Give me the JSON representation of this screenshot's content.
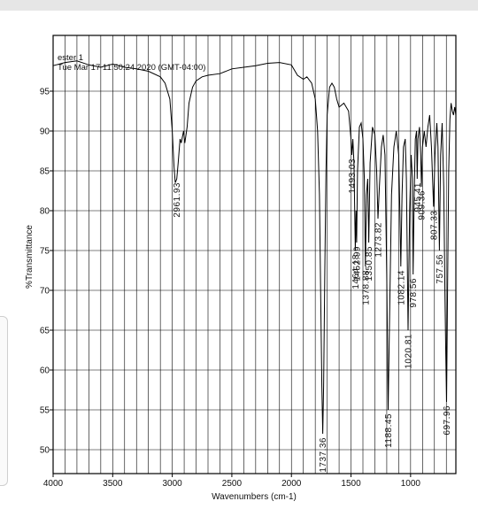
{
  "header": {
    "sample": "ester 1",
    "timestamp": "Tue Mar 17 11:50:24 2020 (GMT-04:00)"
  },
  "chart_data": {
    "type": "line",
    "title": "",
    "xlabel": "Wavenumbers (cm-1)",
    "ylabel": "%Transmittance",
    "xlim": [
      4000,
      620
    ],
    "ylim": [
      47,
      102
    ],
    "x_ticks": [
      "4000",
      "3500",
      "3000",
      "2500",
      "2000",
      "1500",
      "1000"
    ],
    "y_ticks": [
      "95",
      "90",
      "85",
      "80",
      "75",
      "70",
      "65",
      "60",
      "55",
      "50"
    ],
    "grid": true,
    "series": [
      {
        "points": [
          [
            4000,
            98.2
          ],
          [
            3900,
            98.6
          ],
          [
            3800,
            98.8
          ],
          [
            3700,
            98.3
          ],
          [
            3600,
            98.0
          ],
          [
            3500,
            98.4
          ],
          [
            3400,
            98.0
          ],
          [
            3300,
            97.8
          ],
          [
            3200,
            97.5
          ],
          [
            3100,
            96.8
          ],
          [
            3060,
            96.0
          ],
          [
            3020,
            94.0
          ],
          [
            3000,
            90.0
          ],
          [
            2985,
            85.5
          ],
          [
            2975,
            83.5
          ],
          [
            2962,
            84.0
          ],
          [
            2950,
            86.0
          ],
          [
            2935,
            89.0
          ],
          [
            2925,
            88.5
          ],
          [
            2905,
            90.0
          ],
          [
            2895,
            88.5
          ],
          [
            2875,
            90.5
          ],
          [
            2860,
            93.5
          ],
          [
            2830,
            95.5
          ],
          [
            2800,
            96.3
          ],
          [
            2750,
            96.8
          ],
          [
            2700,
            97.0
          ],
          [
            2600,
            97.2
          ],
          [
            2500,
            97.8
          ],
          [
            2400,
            98.0
          ],
          [
            2300,
            98.2
          ],
          [
            2200,
            98.5
          ],
          [
            2100,
            98.6
          ],
          [
            2000,
            98.3
          ],
          [
            1950,
            97.0
          ],
          [
            1900,
            96.5
          ],
          [
            1870,
            96.8
          ],
          [
            1830,
            96.0
          ],
          [
            1800,
            94.0
          ],
          [
            1780,
            90.0
          ],
          [
            1765,
            82.0
          ],
          [
            1755,
            70.0
          ],
          [
            1745,
            58.0
          ],
          [
            1737,
            52.0
          ],
          [
            1730,
            58.0
          ],
          [
            1720,
            72.0
          ],
          [
            1710,
            85.0
          ],
          [
            1700,
            92.0
          ],
          [
            1680,
            95.5
          ],
          [
            1660,
            96.0
          ],
          [
            1640,
            95.5
          ],
          [
            1620,
            94.0
          ],
          [
            1600,
            93.0
          ],
          [
            1560,
            93.5
          ],
          [
            1520,
            92.5
          ],
          [
            1500,
            89.0
          ],
          [
            1493,
            87.0
          ],
          [
            1485,
            89.0
          ],
          [
            1475,
            86.0
          ],
          [
            1464,
            75.0
          ],
          [
            1458,
            80.0
          ],
          [
            1453,
            76.0
          ],
          [
            1445,
            85.0
          ],
          [
            1430,
            90.5
          ],
          [
            1415,
            91.0
          ],
          [
            1400,
            89.0
          ],
          [
            1388,
            84.0
          ],
          [
            1379,
            73.0
          ],
          [
            1370,
            82.0
          ],
          [
            1360,
            84.0
          ],
          [
            1351,
            76.0
          ],
          [
            1340,
            86.0
          ],
          [
            1320,
            90.5
          ],
          [
            1300,
            89.5
          ],
          [
            1285,
            85.0
          ],
          [
            1274,
            79.0
          ],
          [
            1262,
            83.0
          ],
          [
            1245,
            88.0
          ],
          [
            1230,
            89.5
          ],
          [
            1215,
            87.0
          ],
          [
            1200,
            72.0
          ],
          [
            1188,
            55.0
          ],
          [
            1175,
            68.0
          ],
          [
            1160,
            82.0
          ],
          [
            1140,
            88.0
          ],
          [
            1120,
            90.0
          ],
          [
            1100,
            87.0
          ],
          [
            1090,
            80.0
          ],
          [
            1082,
            73.0
          ],
          [
            1072,
            82.0
          ],
          [
            1060,
            88.0
          ],
          [
            1045,
            89.0
          ],
          [
            1035,
            84.0
          ],
          [
            1021,
            65.0
          ],
          [
            1008,
            80.0
          ],
          [
            995,
            87.0
          ],
          [
            985,
            84.0
          ],
          [
            979,
            72.0
          ],
          [
            970,
            82.0
          ],
          [
            960,
            89.0
          ],
          [
            950,
            90.0
          ],
          [
            945,
            84.0
          ],
          [
            938,
            89.0
          ],
          [
            925,
            90.5
          ],
          [
            915,
            87.0
          ],
          [
            909,
            83.0
          ],
          [
            900,
            88.0
          ],
          [
            885,
            90.0
          ],
          [
            870,
            88.0
          ],
          [
            855,
            90.5
          ],
          [
            840,
            92.0
          ],
          [
            825,
            88.0
          ],
          [
            807,
            80.5
          ],
          [
            795,
            87.0
          ],
          [
            780,
            91.0
          ],
          [
            770,
            88.0
          ],
          [
            758,
            75.0
          ],
          [
            748,
            87.0
          ],
          [
            735,
            91.0
          ],
          [
            722,
            83.0
          ],
          [
            712,
            70.0
          ],
          [
            705,
            62.0
          ],
          [
            698,
            56.0
          ],
          [
            690,
            70.0
          ],
          [
            680,
            85.0
          ],
          [
            670,
            91.5
          ],
          [
            660,
            93.5
          ],
          [
            650,
            92.5
          ],
          [
            640,
            92.0
          ],
          [
            630,
            93.0
          ],
          [
            620,
            92.0
          ]
        ]
      }
    ],
    "peaks": [
      {
        "label": "2961.93",
        "x": 2962
      },
      {
        "label": "1737.36",
        "x": 1737
      },
      {
        "label": "1493.03",
        "x": 1493
      },
      {
        "label": "1464.18",
        "x": 1464
      },
      {
        "label": "1452.99",
        "x": 1453
      },
      {
        "label": "1378.88",
        "x": 1379
      },
      {
        "label": "1350.85",
        "x": 1351
      },
      {
        "label": "1273.82",
        "x": 1274
      },
      {
        "label": "1188.45",
        "x": 1188
      },
      {
        "label": "1082.14",
        "x": 1082
      },
      {
        "label": "1020.81",
        "x": 1021
      },
      {
        "label": "978.56",
        "x": 979
      },
      {
        "label": "945.41",
        "x": 945
      },
      {
        "label": "909.36",
        "x": 909
      },
      {
        "label": "807.33",
        "x": 807
      },
      {
        "label": "757.56",
        "x": 758
      },
      {
        "label": "697.96",
        "x": 698
      }
    ]
  }
}
